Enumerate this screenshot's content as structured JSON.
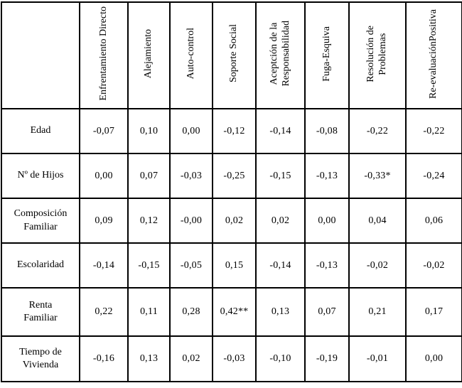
{
  "chart_data": {
    "type": "table",
    "corner_label": "",
    "decimal_format": "comma",
    "significance_notes": [
      "* on -0,33 (Nº de Hijos × Resolución de Problemas)",
      "** on 0,42 (Renta Familiar × Soporte Social)"
    ],
    "column_headers": [
      "Enfrentamiento Directo",
      "Alejamiento",
      "Auto-control",
      "Soporte Social",
      "Aceptción de la\nResponsabilidad",
      "Fuga-Esquiva",
      "Resolución de\nProblemas",
      "Re-evaluaciónPositiva"
    ],
    "rows": [
      {
        "label": "Edad",
        "values": [
          "-0,07",
          "0,10",
          "0,00",
          "-0,12",
          "-0,14",
          "-0,08",
          "-0,22",
          "-0,22"
        ]
      },
      {
        "label": "Nº de Hijos",
        "values": [
          "0,00",
          "0,07",
          "-0,03",
          "-0,25",
          "-0,15",
          "-0,13",
          "-0,33*",
          "-0,24"
        ]
      },
      {
        "label": "Composición\nFamiliar",
        "values": [
          "0,09",
          "0,12",
          "-0,00",
          "0,02",
          "0,02",
          "0,00",
          "0,04",
          "0,06"
        ]
      },
      {
        "label": "Escolaridad",
        "values": [
          "-0,14",
          "-0,15",
          "-0,05",
          "0,15",
          "-0,14",
          "-0,13",
          "-0,02",
          "-0,02"
        ]
      },
      {
        "label": "Renta\nFamiliar",
        "values": [
          "0,22",
          "0,11",
          "0,28",
          "0,42**",
          "0,13",
          "0,07",
          "0,21",
          "0,17"
        ]
      },
      {
        "label": "Tiempo de\nVivienda",
        "values": [
          "-0,16",
          "0,13",
          "0,02",
          "-0,03",
          "-0,10",
          "-0,19",
          "-0,01",
          "0,00"
        ]
      }
    ]
  }
}
